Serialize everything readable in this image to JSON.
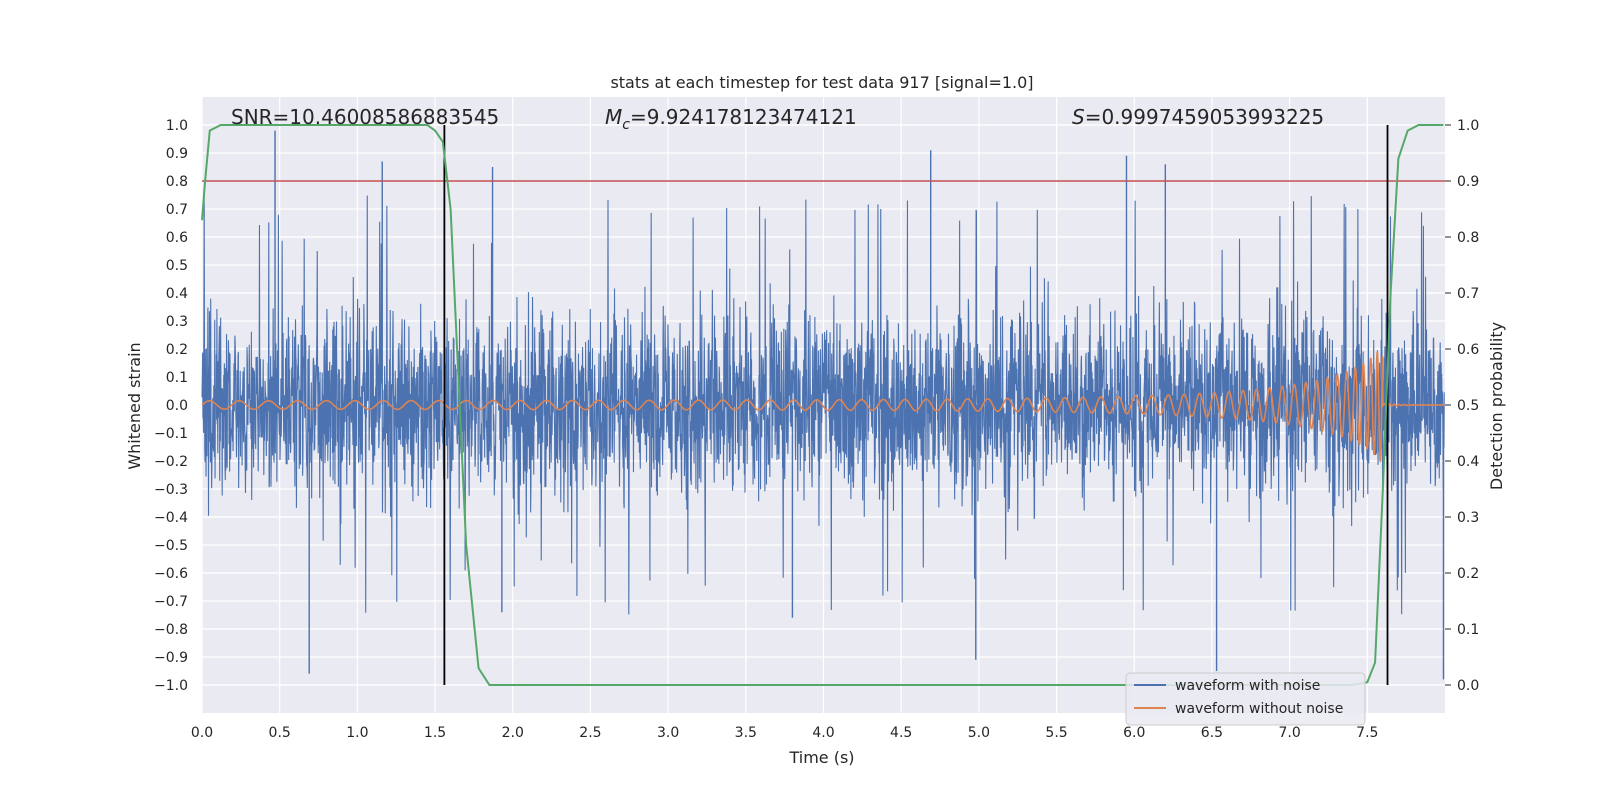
{
  "chart_data": {
    "type": "line",
    "title": "stats at each timestep for test data 917 [signal=1.0]",
    "xlabel": "Time (s)",
    "ylabel": "Whitened strain",
    "ylabel_right": "Detection probability",
    "xlim": [
      0.0,
      8.0
    ],
    "ylim": [
      -1.1,
      1.1
    ],
    "ylim_right": [
      -0.05,
      1.05
    ],
    "x_ticks": [
      0.0,
      0.5,
      1.0,
      1.5,
      2.0,
      2.5,
      3.0,
      3.5,
      4.0,
      4.5,
      5.0,
      5.5,
      6.0,
      6.5,
      7.0,
      7.5
    ],
    "x_tick_labels": [
      "0.0",
      "0.5",
      "1.0",
      "1.5",
      "2.0",
      "2.5",
      "3.0",
      "3.5",
      "4.0",
      "4.5",
      "5.0",
      "5.5",
      "6.0",
      "6.5",
      "7.0",
      "7.5"
    ],
    "y_ticks": [
      1.0,
      0.9,
      0.8,
      0.7,
      0.6,
      0.5,
      0.4,
      0.3,
      0.2,
      0.1,
      0.0,
      -0.1,
      -0.2,
      -0.3,
      -0.4,
      -0.5,
      -0.6,
      -0.7,
      -0.8,
      -0.9,
      -1.0
    ],
    "y_tick_labels": [
      "1.0",
      "0.9",
      "0.8",
      "0.7",
      "0.6",
      "0.5",
      "0.4",
      "0.3",
      "0.2",
      "0.1",
      "0.0",
      "−0.1",
      "−0.2",
      "−0.3",
      "−0.4",
      "−0.5",
      "−0.6",
      "−0.7",
      "−0.8",
      "−0.9",
      "−1.0"
    ],
    "y_right_ticks": [
      1.0,
      0.9,
      0.8,
      0.7,
      0.6,
      0.5,
      0.4,
      0.3,
      0.2,
      0.1,
      0.0
    ],
    "y_right_tick_labels": [
      "1.0",
      "0.9",
      "0.8",
      "0.7",
      "0.6",
      "0.5",
      "0.4",
      "0.3",
      "0.2",
      "0.1",
      "0.0"
    ],
    "grid": true,
    "legend_position": "bottom-right",
    "annotations": {
      "snr": "SNR=10.46008586883545",
      "mc_symbol": "M",
      "mc_sub": "c",
      "mc_value": "=9.924178123474121",
      "s_symbol": "S",
      "s_value": "=0.9997459053993225"
    },
    "threshold_right": 0.9,
    "vertical_lines_x": [
      1.56,
      7.63
    ],
    "series": [
      {
        "name": "waveform with noise",
        "color": "#4c72b0",
        "description_values": "dense noisy strain roughly within ±0.6",
        "peaks": [
          {
            "x": 0.47,
            "y": 0.98
          },
          {
            "x": 1.16,
            "y": 0.87
          },
          {
            "x": 1.87,
            "y": 0.85
          },
          {
            "x": 4.69,
            "y": 0.91
          },
          {
            "x": 5.95,
            "y": 0.89
          },
          {
            "x": 6.2,
            "y": 0.86
          },
          {
            "x": 0.69,
            "y": -0.96
          },
          {
            "x": 4.98,
            "y": -0.91
          },
          {
            "x": 6.53,
            "y": -0.95
          },
          {
            "x": 1.93,
            "y": -0.74
          },
          {
            "x": 3.8,
            "y": -0.76
          },
          {
            "x": 7.99,
            "y": -0.98
          }
        ],
        "amplitude": 0.55
      },
      {
        "name": "waveform without noise",
        "color": "#dd8452",
        "chirp_end_x": 7.6,
        "start_amplitude": 0.015,
        "end_amplitude": 0.22
      },
      {
        "name": "detection probability",
        "color": "#55a868",
        "axis": "right",
        "x": [
          0.0,
          0.02,
          0.05,
          0.12,
          0.5,
          1.0,
          1.45,
          1.5,
          1.55,
          1.6,
          1.65,
          1.7,
          1.78,
          1.85,
          1.9,
          2.0,
          7.4,
          7.5,
          7.55,
          7.6,
          7.65,
          7.7,
          7.76,
          7.83,
          7.9,
          7.99
        ],
        "y": [
          0.83,
          0.9,
          0.99,
          1.0,
          1.0,
          1.0,
          1.0,
          0.99,
          0.97,
          0.85,
          0.55,
          0.25,
          0.03,
          0.0,
          0.0,
          0.0,
          0.0,
          0.005,
          0.04,
          0.35,
          0.7,
          0.94,
          0.99,
          1.0,
          1.0,
          1.0
        ]
      }
    ]
  }
}
